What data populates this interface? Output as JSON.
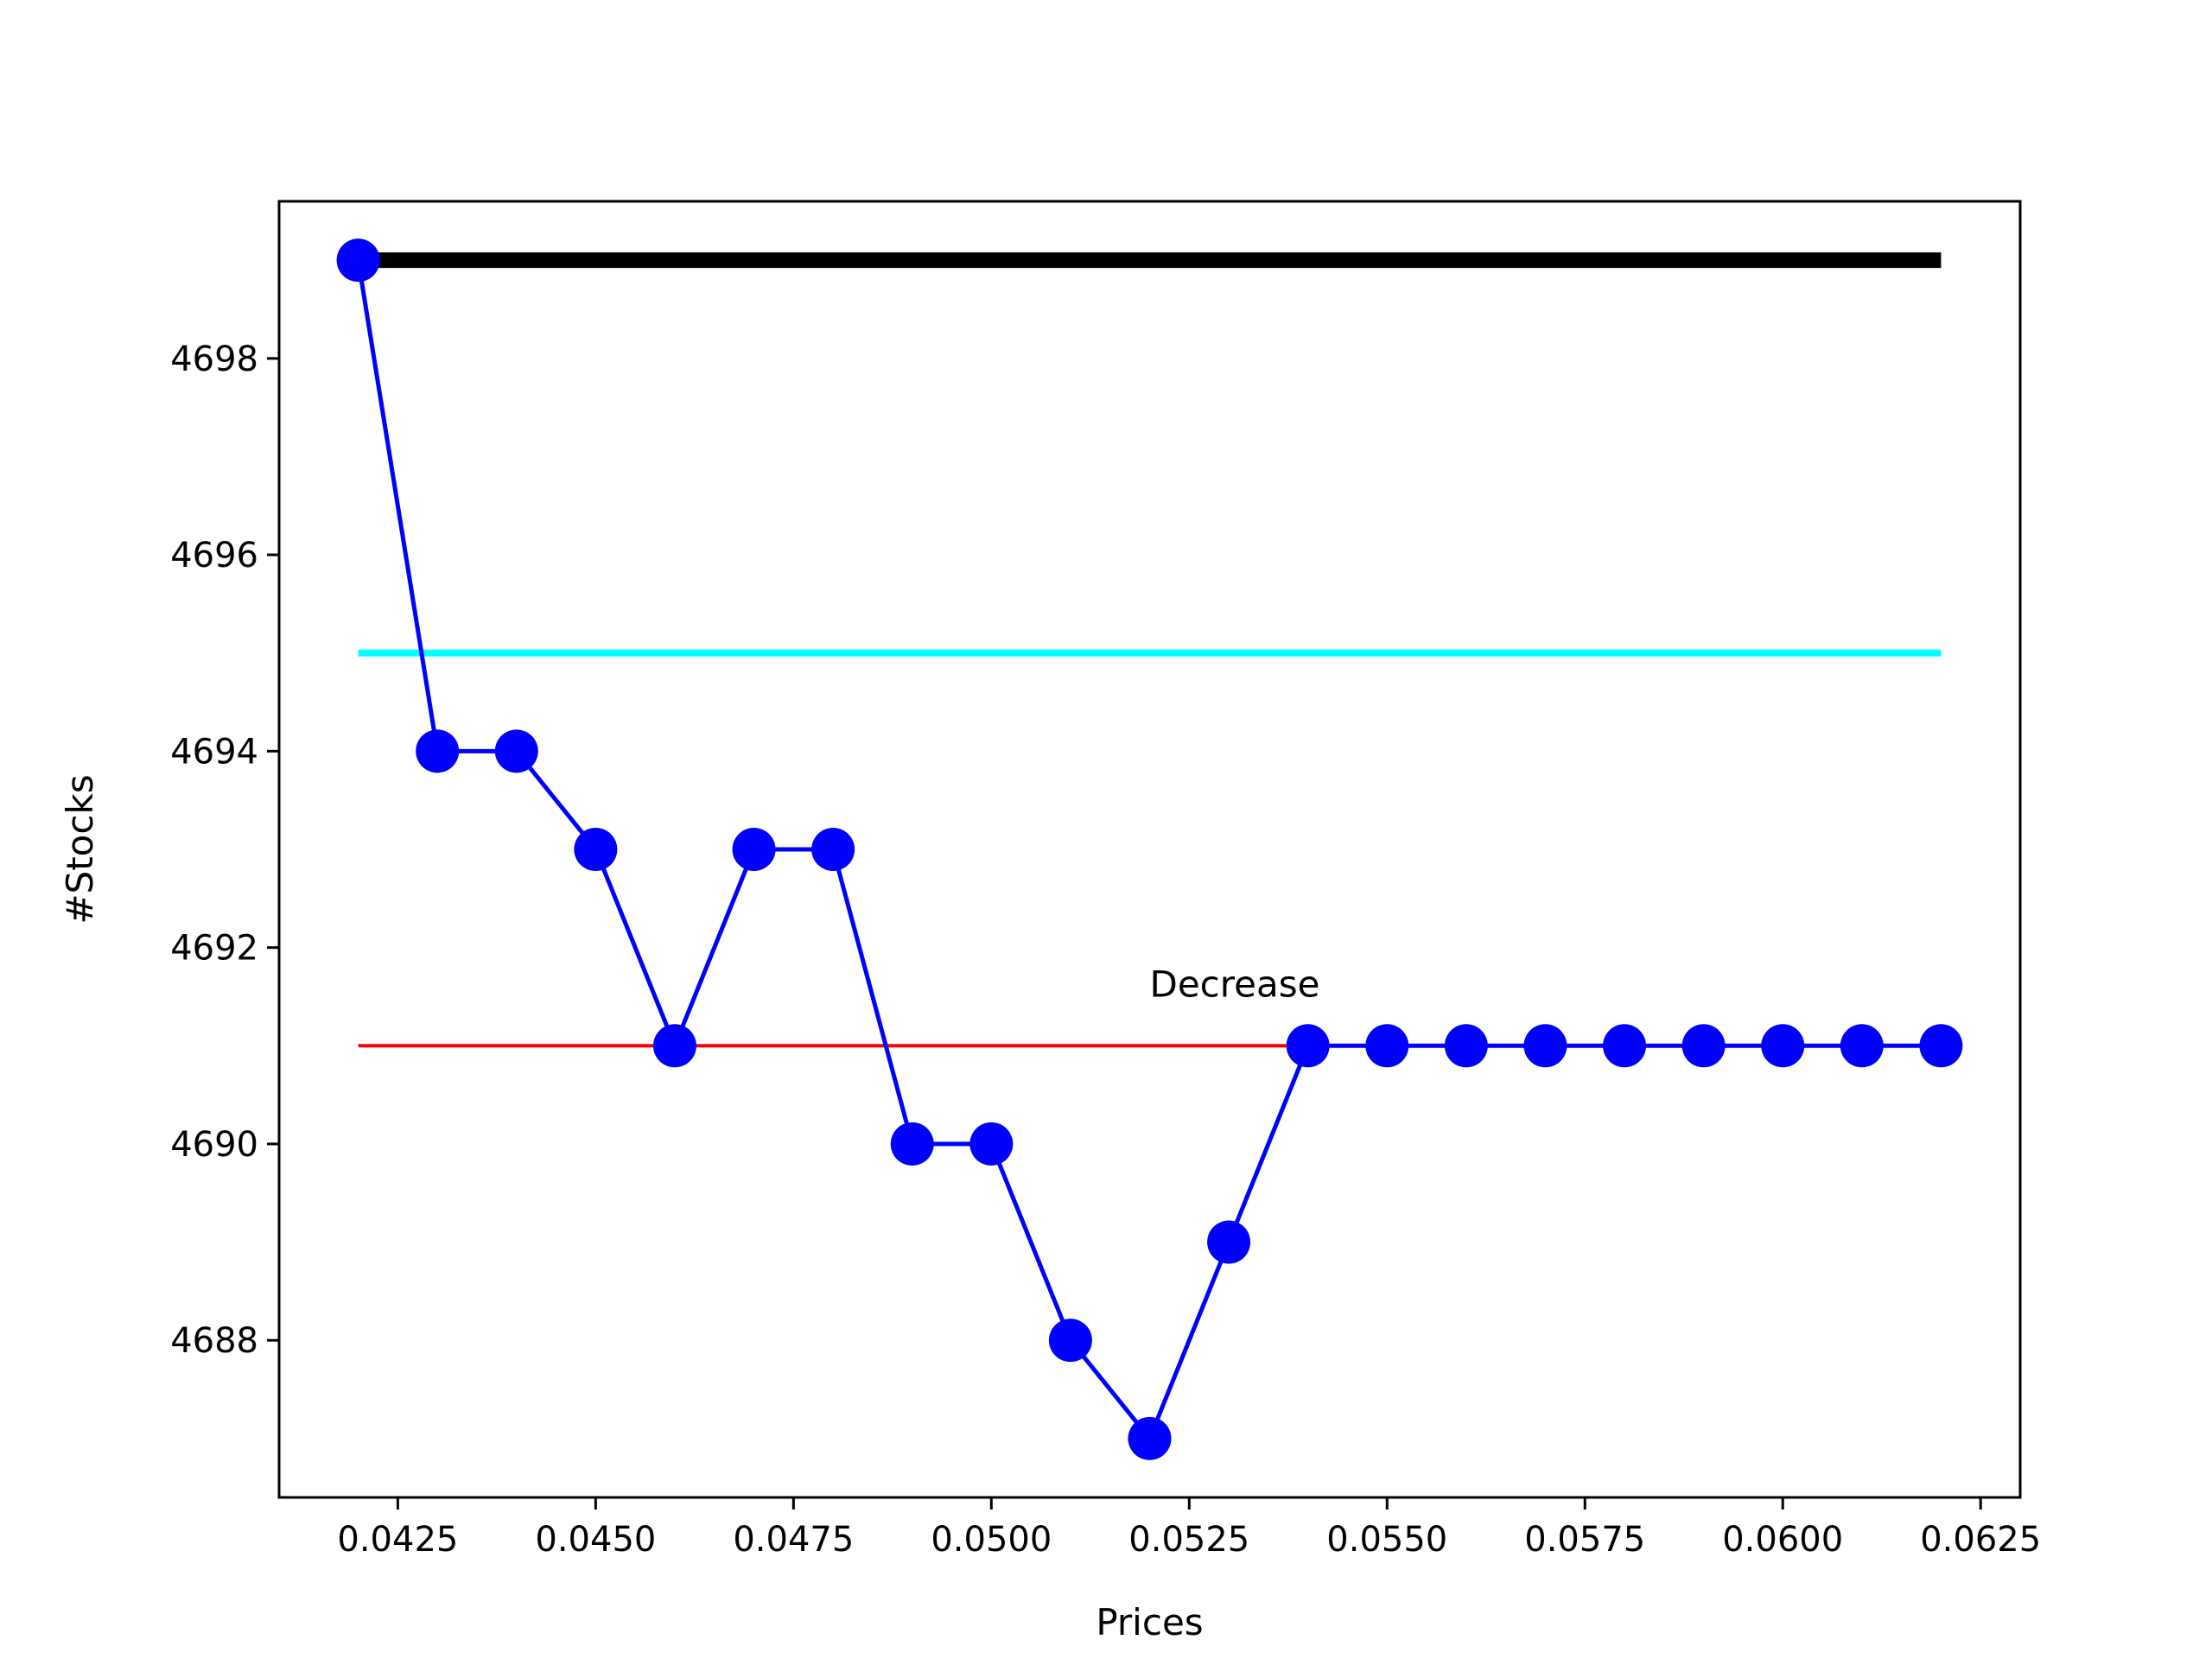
{
  "chart_data": {
    "type": "line",
    "xlabel": "Prices",
    "ylabel": "#Stocks",
    "xlim": [
      0.041,
      0.063
    ],
    "ylim": [
      4686.4,
      4699.6
    ],
    "x_ticks": [
      0.0425,
      0.045,
      0.0475,
      0.05,
      0.0525,
      0.055,
      0.0575,
      0.06,
      0.0625
    ],
    "x_tick_labels": [
      "0.0425",
      "0.0450",
      "0.0475",
      "0.0500",
      "0.0525",
      "0.0550",
      "0.0575",
      "0.0600",
      "0.0625"
    ],
    "y_ticks": [
      4688,
      4690,
      4692,
      4694,
      4696,
      4698
    ],
    "y_tick_labels": [
      "4688",
      "4690",
      "4692",
      "4694",
      "4696",
      "4698"
    ],
    "grid": false,
    "series": [
      {
        "color": "#0000ff",
        "marker": "circle",
        "x": [
          0.042,
          0.043,
          0.044,
          0.045,
          0.046,
          0.047,
          0.048,
          0.049,
          0.05,
          0.051,
          0.052,
          0.053,
          0.054,
          0.055,
          0.056,
          0.057,
          0.058,
          0.059,
          0.06,
          0.061,
          0.062
        ],
        "y": [
          4699,
          4694,
          4694,
          4693,
          4691,
          4693,
          4693,
          4690,
          4690,
          4688,
          4687,
          4689,
          4691,
          4691,
          4691,
          4691,
          4691,
          4691,
          4691,
          4691,
          4691
        ]
      }
    ],
    "reference_lines": [
      {
        "y": 4699,
        "x_range": [
          0.042,
          0.062
        ],
        "color": "#000000",
        "style": "thick"
      },
      {
        "y": 4695,
        "x_range": [
          0.042,
          0.062
        ],
        "color": "#00ffff",
        "style": "medium"
      },
      {
        "y": 4691,
        "x_range": [
          0.042,
          0.054
        ],
        "color": "#ff0000",
        "style": "thin"
      }
    ],
    "annotations": [
      {
        "text": "Decrease",
        "x": 0.052,
        "y": 4691.5
      }
    ]
  }
}
